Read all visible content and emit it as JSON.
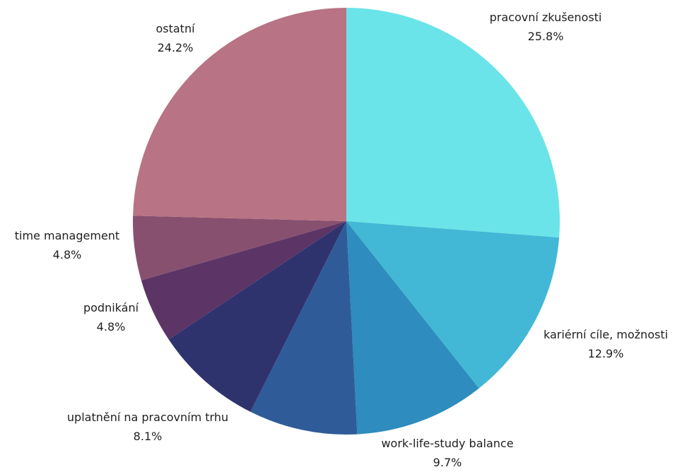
{
  "chart_data": {
    "type": "pie",
    "title": "",
    "start_angle_deg": 0,
    "direction": "clockwise",
    "slices": [
      {
        "label": "pracovní zkušenosti",
        "value": 25.8,
        "value_label": "25.8%",
        "color": "#6BE4E9"
      },
      {
        "label": "kariérní cíle, možnosti",
        "value": 12.9,
        "value_label": "12.9%",
        "color": "#42B8D6"
      },
      {
        "label": "work-life-study balance",
        "value": 9.7,
        "value_label": "9.7%",
        "color": "#2E8CBE"
      },
      {
        "label": "uplatnění na pracovním trhu",
        "value": 8.1,
        "value_label": "8.1%",
        "color": "#2F5C98"
      },
      {
        "label": "podnikání",
        "value": 8.1,
        "value_label": "",
        "color": "#2F336D"
      },
      {
        "label": "",
        "value": 4.8,
        "value_label": "4.8%",
        "color": "#5C3566"
      },
      {
        "label": "time management",
        "value": 4.8,
        "value_label": "4.8%",
        "color": "#88506F"
      },
      {
        "label": "ostatní",
        "value": 24.2,
        "value_label": "24.2%",
        "color": "#B87384"
      }
    ],
    "legend": "none"
  }
}
